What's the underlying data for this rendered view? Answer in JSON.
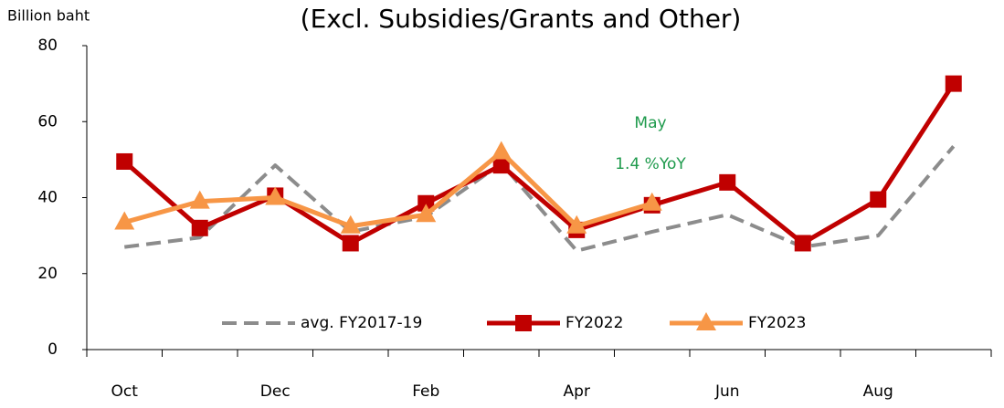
{
  "chart_data": {
    "type": "line",
    "title": "(Excl. Subsidies/Grants and Other)",
    "y_label": "Billion baht",
    "categories": [
      "Oct",
      null,
      "Dec",
      null,
      "Feb",
      null,
      "Apr",
      null,
      "Jun",
      null,
      "Aug",
      null
    ],
    "series": [
      {
        "name": "avg. FY2017-19",
        "color": "#8c8c8c",
        "line_style": "dashed",
        "marker": null,
        "values": [
          27,
          29.5,
          48.5,
          31,
          35,
          49,
          26,
          31,
          35.5,
          27,
          30,
          53.5
        ]
      },
      {
        "name": "FY2022",
        "color": "#c00000",
        "line_style": "solid",
        "marker": "square",
        "values": [
          49.5,
          32,
          40.5,
          28,
          38.5,
          48.5,
          31.5,
          38,
          44,
          28,
          39.5,
          70
        ]
      },
      {
        "name": "FY2023",
        "color": "#f79646",
        "line_style": "solid",
        "marker": "triangle",
        "values": [
          33.5,
          39,
          40,
          32.5,
          35.5,
          52,
          32.5,
          38.5,
          null,
          null,
          null,
          null
        ]
      }
    ],
    "ylim": [
      0,
      80
    ],
    "yticks": [
      0,
      20,
      40,
      60,
      80
    ],
    "grid": false,
    "legend": "lower center",
    "annotations": [
      {
        "text": "May",
        "color": "#1e9a4c"
      },
      {
        "text": "1.4 %YoY",
        "color": "#1e9a4c"
      }
    ]
  }
}
